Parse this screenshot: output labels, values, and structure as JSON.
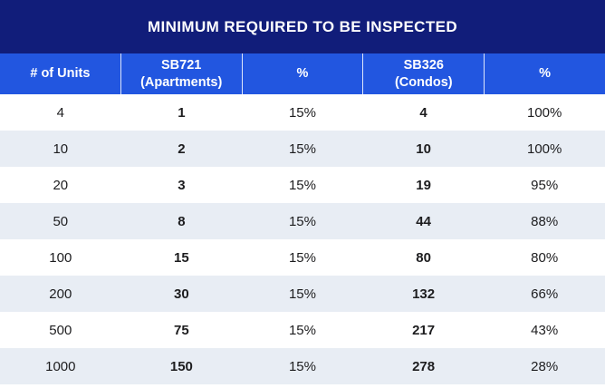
{
  "title": "MINIMUM REQUIRED TO BE INSPECTED",
  "colors": {
    "title_bar": "#111d7a",
    "header_row": "#2256e0",
    "stripe": "#e8edf4",
    "text": "#1d1d1f"
  },
  "columns": [
    {
      "label": "# of Units"
    },
    {
      "label": "SB721\n(Apartments)"
    },
    {
      "label": "%"
    },
    {
      "label": "SB326\n(Condos)"
    },
    {
      "label": "%"
    }
  ],
  "rows": [
    {
      "units": "4",
      "sb721": "1",
      "sb721_pct": "15%",
      "sb326": "4",
      "sb326_pct": "100%"
    },
    {
      "units": "10",
      "sb721": "2",
      "sb721_pct": "15%",
      "sb326": "10",
      "sb326_pct": "100%"
    },
    {
      "units": "20",
      "sb721": "3",
      "sb721_pct": "15%",
      "sb326": "19",
      "sb326_pct": "95%"
    },
    {
      "units": "50",
      "sb721": "8",
      "sb721_pct": "15%",
      "sb326": "44",
      "sb326_pct": "88%"
    },
    {
      "units": "100",
      "sb721": "15",
      "sb721_pct": "15%",
      "sb326": "80",
      "sb326_pct": "80%"
    },
    {
      "units": "200",
      "sb721": "30",
      "sb721_pct": "15%",
      "sb326": "132",
      "sb326_pct": "66%"
    },
    {
      "units": "500",
      "sb721": "75",
      "sb721_pct": "15%",
      "sb326": "217",
      "sb326_pct": "43%"
    },
    {
      "units": "1000",
      "sb721": "150",
      "sb721_pct": "15%",
      "sb326": "278",
      "sb326_pct": "28%"
    }
  ],
  "chart_data": {
    "type": "table",
    "title": "MINIMUM REQUIRED TO BE INSPECTED",
    "columns": [
      "# of Units",
      "SB721 (Apartments)",
      "%",
      "SB326 (Condos)",
      "%"
    ],
    "rows": [
      [
        4,
        1,
        "15%",
        4,
        "100%"
      ],
      [
        10,
        2,
        "15%",
        10,
        "100%"
      ],
      [
        20,
        3,
        "15%",
        19,
        "95%"
      ],
      [
        50,
        8,
        "15%",
        44,
        "88%"
      ],
      [
        100,
        15,
        "15%",
        80,
        "80%"
      ],
      [
        200,
        30,
        "15%",
        132,
        "66%"
      ],
      [
        500,
        75,
        "15%",
        217,
        "43%"
      ],
      [
        1000,
        150,
        "15%",
        278,
        "28%"
      ]
    ],
    "layout": {
      "striped_rows": true,
      "header_background": "#2256e0",
      "title_background": "#111d7a"
    }
  }
}
